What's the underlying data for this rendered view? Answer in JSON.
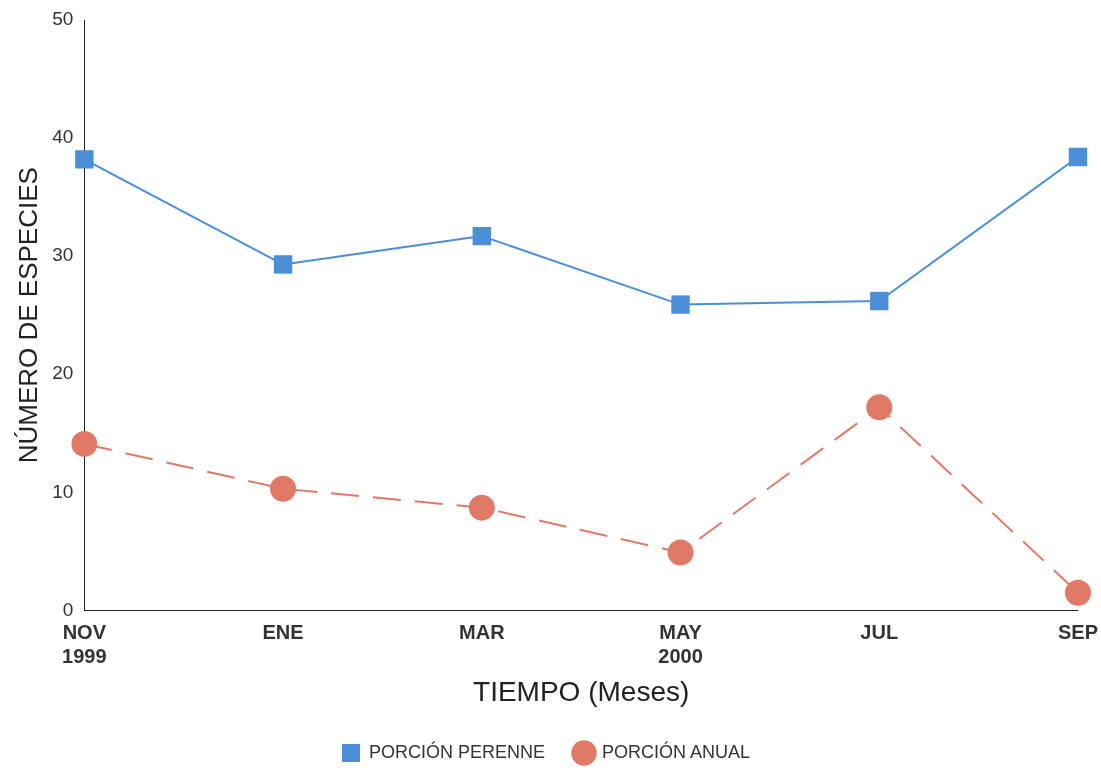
{
  "chart_data": {
    "type": "line",
    "xlabel": "TIEMPO (Meses)",
    "ylabel": "NÚMERO DE ESPECIES",
    "categories": [
      "NOV\n1999",
      "ENE",
      "MAR",
      "MAY\n2000",
      "JUL",
      "SEP"
    ],
    "series": [
      {
        "name": "PORCIÓN PERENNE",
        "color": "#4a8fd8",
        "marker": "square",
        "line_style": "solid",
        "values": [
          38.2,
          29.3,
          31.7,
          25.9,
          26.2,
          38.4
        ]
      },
      {
        "name": "PORCIÓN ANUAL",
        "color": "#e07a66",
        "marker": "circle",
        "line_style": "dashed",
        "values": [
          14.1,
          10.3,
          8.7,
          4.9,
          17.2,
          1.5
        ]
      }
    ],
    "ylim": [
      0,
      50
    ],
    "yticks": [
      0,
      10,
      20,
      30,
      40,
      50
    ],
    "grid": false,
    "legend": "bottom"
  }
}
